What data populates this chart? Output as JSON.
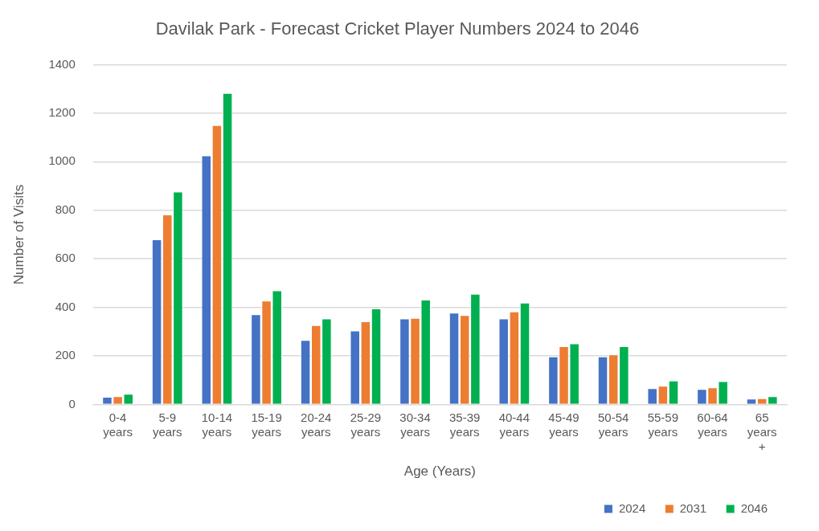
{
  "chart_data": {
    "type": "bar",
    "title": "Davilak Park - Forecast Cricket Player Numbers 2024 to 2046",
    "xlabel": "Age (Years)",
    "ylabel": "Number of Visits",
    "categories": [
      "0-4 years",
      "5-9 years",
      "10-14 years",
      "15-19 years",
      "20-24 years",
      "25-29 years",
      "30-34 years",
      "35-39 years",
      "40-44 years",
      "45-49 years",
      "50-54 years",
      "55-59 years",
      "60-64 years",
      "65 years +"
    ],
    "series": [
      {
        "name": "2024",
        "color": "#4472c4",
        "values": [
          32,
          680,
          1026,
          372,
          266,
          305,
          354,
          378,
          354,
          198,
          198,
          67,
          64,
          24
        ]
      },
      {
        "name": "2031",
        "color": "#ed7d31",
        "values": [
          34,
          783,
          1151,
          428,
          327,
          343,
          357,
          368,
          383,
          240,
          206,
          77,
          71,
          26
        ]
      },
      {
        "name": "2046",
        "color": "#00b050",
        "values": [
          44,
          877,
          1283,
          470,
          354,
          396,
          432,
          456,
          420,
          252,
          240,
          99,
          96,
          34
        ]
      }
    ],
    "ylim": [
      0,
      1400
    ],
    "yticks": [
      0,
      200,
      400,
      600,
      800,
      1000,
      1200,
      1400
    ],
    "grid": "y",
    "legend": "bottom right"
  }
}
